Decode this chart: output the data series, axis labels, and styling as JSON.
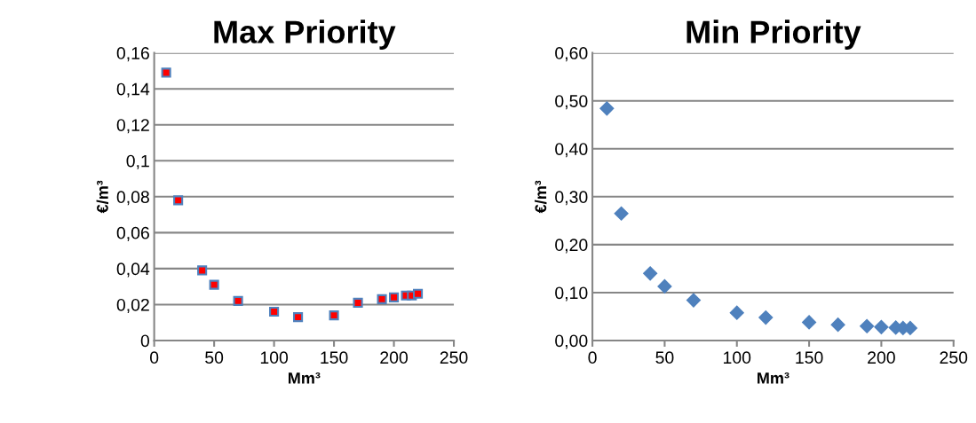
{
  "chart_data": [
    {
      "type": "scatter",
      "title": "Max Priority",
      "xlabel": "Mm³",
      "ylabel": "€/m³",
      "marker": "square",
      "grid": "y",
      "x": [
        10,
        20,
        40,
        50,
        70,
        100,
        120,
        150,
        170,
        190,
        200,
        210,
        215,
        220
      ],
      "series": [
        {
          "color": "#ff0000",
          "values": [
            0.149,
            0.078,
            0.039,
            0.031,
            0.022,
            0.016,
            0.013,
            0.014,
            0.021,
            0.023,
            0.024,
            0.025,
            0.025,
            0.026
          ]
        }
      ],
      "xlim": [
        0,
        250
      ],
      "xticks": [
        0,
        50,
        100,
        150,
        200,
        250
      ],
      "ylim": [
        0,
        0.16
      ],
      "yticks": [
        0,
        {
          "value": 0.02,
          "label": "0,02"
        },
        {
          "value": 0.04,
          "label": "0,04"
        },
        {
          "value": 0.06,
          "label": "0,06"
        },
        {
          "value": 0.08,
          "label": "0,08"
        },
        {
          "value": 0.1,
          "label": "0,1"
        },
        {
          "value": 0.12,
          "label": "0,12"
        },
        {
          "value": 0.14,
          "label": "0,14"
        },
        {
          "value": 0.16,
          "label": "0,16"
        }
      ]
    },
    {
      "type": "scatter",
      "title": "Min Priority",
      "xlabel": "Mm³",
      "ylabel": "€/m³",
      "marker": "diamond",
      "grid": "y",
      "x": [
        10,
        20,
        40,
        50,
        70,
        100,
        120,
        150,
        170,
        190,
        200,
        210,
        215,
        220
      ],
      "series": [
        {
          "color": "#4f81bd",
          "values": [
            0.484,
            0.265,
            0.14,
            0.113,
            0.084,
            0.058,
            0.048,
            0.038,
            0.033,
            0.03,
            0.028,
            0.027,
            0.026,
            0.026
          ]
        }
      ],
      "xlim": [
        0,
        250
      ],
      "xticks": [
        0,
        50,
        100,
        150,
        200,
        250
      ],
      "ylim": [
        0,
        0.6
      ],
      "yticks": [
        {
          "value": 0,
          "label": "0,00"
        },
        {
          "value": 0.1,
          "label": "0,10"
        },
        {
          "value": 0.2,
          "label": "0,20"
        },
        {
          "value": 0.3,
          "label": "0,30"
        },
        {
          "value": 0.4,
          "label": "0,40"
        },
        {
          "value": 0.5,
          "label": "0,50"
        },
        {
          "value": 0.6,
          "label": "0,60"
        }
      ]
    }
  ]
}
